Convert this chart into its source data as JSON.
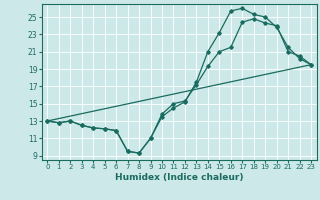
{
  "xlabel": "Humidex (Indice chaleur)",
  "bg_color": "#cce8e8",
  "grid_color": "#b8d8d8",
  "line_color": "#1a6b60",
  "xlim": [
    -0.5,
    23.5
  ],
  "ylim": [
    8.5,
    26.5
  ],
  "xticks": [
    0,
    1,
    2,
    3,
    4,
    5,
    6,
    7,
    8,
    9,
    10,
    11,
    12,
    13,
    14,
    15,
    16,
    17,
    18,
    19,
    20,
    21,
    22,
    23
  ],
  "yticks": [
    9,
    11,
    13,
    15,
    17,
    19,
    21,
    23,
    25
  ],
  "line1_x": [
    0,
    1,
    2,
    3,
    4,
    5,
    6,
    7,
    8,
    9,
    10,
    11,
    12,
    13,
    14,
    15,
    16,
    17,
    18,
    19,
    20,
    21,
    22,
    23
  ],
  "line1_y": [
    13.0,
    12.8,
    13.0,
    12.5,
    12.2,
    12.1,
    11.9,
    9.5,
    9.3,
    11.0,
    13.8,
    15.0,
    15.3,
    17.2,
    19.3,
    21.0,
    21.5,
    24.4,
    24.8,
    24.3,
    24.0,
    21.0,
    20.5,
    19.5
  ],
  "line2_x": [
    0,
    1,
    2,
    3,
    4,
    5,
    6,
    7,
    8,
    9,
    10,
    11,
    12,
    13,
    14,
    15,
    16,
    17,
    18,
    19,
    20,
    21,
    22,
    23
  ],
  "line2_y": [
    13.0,
    12.8,
    13.0,
    12.5,
    12.2,
    12.1,
    11.9,
    9.5,
    9.3,
    11.0,
    13.5,
    14.5,
    15.2,
    17.5,
    21.0,
    23.2,
    25.7,
    26.0,
    25.3,
    25.0,
    23.8,
    21.5,
    20.2,
    19.5
  ],
  "line3_x": [
    0,
    23
  ],
  "line3_y": [
    13.0,
    19.5
  ]
}
